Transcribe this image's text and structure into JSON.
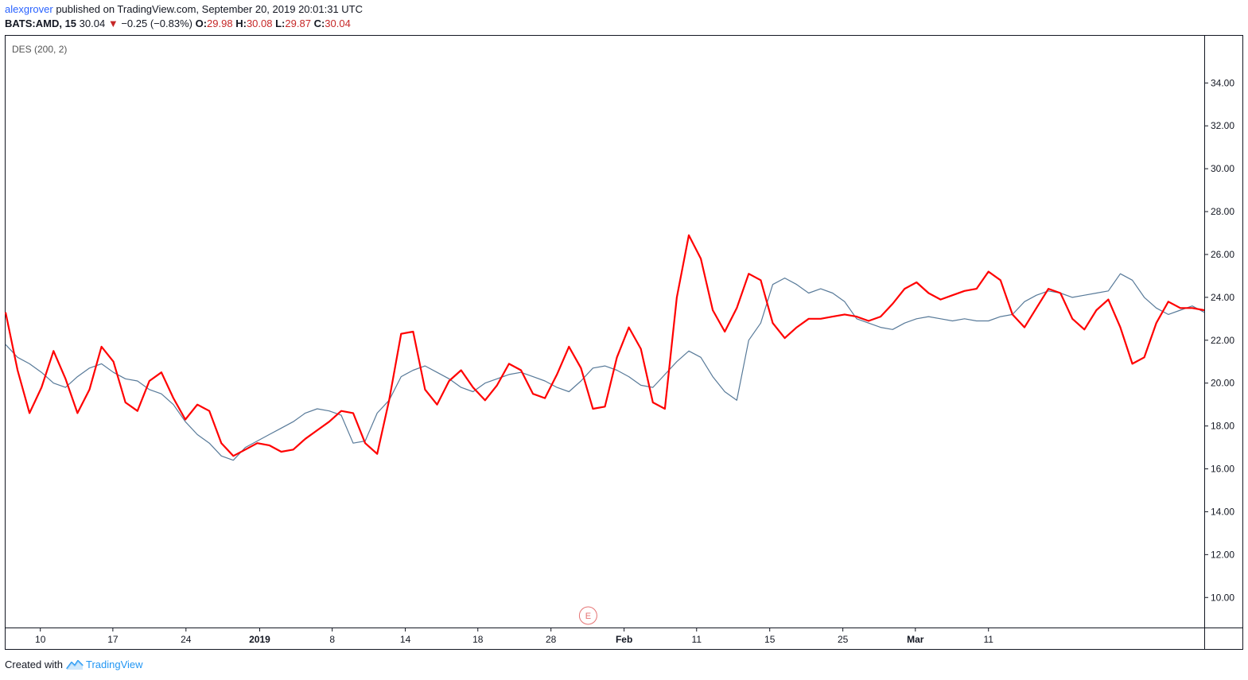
{
  "header": {
    "user": "alexgrover",
    "publish_text": "published on TradingView.com, September 20, 2019 20:01:31 UTC",
    "symbol": "BATS:AMD, 15",
    "last": "30.04",
    "change": "−0.25 (−0.83%)",
    "o_label": "O:",
    "o_value": "29.98",
    "h_label": "H:",
    "h_value": "30.08",
    "l_label": "L:",
    "l_value": "29.87",
    "c_label": "C:",
    "c_value": "30.04"
  },
  "footer": {
    "created_with": "Created with",
    "brand": "TradingView"
  },
  "colors": {
    "price": "#587a99",
    "indicator": "#ff0000",
    "axis": "#131722",
    "earnings": "#e57373"
  },
  "chart_data": {
    "type": "line",
    "indicator_label": "DES (200, 2)",
    "earnings_marker": "E",
    "ylim": [
      8.6,
      36.2
    ],
    "y_ticks": [
      "10.00",
      "12.00",
      "14.00",
      "16.00",
      "18.00",
      "20.00",
      "22.00",
      "24.00",
      "26.00",
      "28.00",
      "30.00",
      "32.00",
      "34.00"
    ],
    "x_ticks": [
      {
        "label": "10",
        "x": 5.8,
        "bold": false
      },
      {
        "label": "17",
        "x": 17.9,
        "bold": false
      },
      {
        "label": "24",
        "x": 30.1,
        "bold": false
      },
      {
        "label": "2019",
        "x": 42.4,
        "bold": true
      },
      {
        "label": "8",
        "x": 54.5,
        "bold": false
      },
      {
        "label": "14",
        "x": 66.7,
        "bold": false
      },
      {
        "label": "18",
        "x": 78.8,
        "bold": false
      },
      {
        "label": "28",
        "x": 91.0,
        "bold": false
      },
      {
        "label": "Feb",
        "x": 103.2,
        "bold": true
      },
      {
        "label": "11",
        "x": 115.3,
        "bold": false
      },
      {
        "label": "15",
        "x": 127.5,
        "bold": false
      },
      {
        "label": "25",
        "x": 139.7,
        "bold": false
      },
      {
        "label": "Mar",
        "x": 151.8,
        "bold": true
      },
      {
        "label": "11",
        "x": 164.0,
        "bold": false
      }
    ],
    "earnings_x": 97.2,
    "xlim": [
      0,
      200
    ],
    "series": [
      {
        "name": "BATS:AMD, 15",
        "color": "#587a99",
        "x": [
          0,
          2,
          4,
          6,
          8,
          10,
          12,
          14,
          16,
          18,
          20,
          22,
          24,
          26,
          28,
          30,
          32,
          34,
          36,
          38,
          40,
          42,
          44,
          46,
          48,
          50,
          52,
          54,
          56,
          58,
          60,
          62,
          64,
          66,
          68,
          70,
          72,
          74,
          76,
          78,
          80,
          82,
          84,
          86,
          88,
          90,
          92,
          94,
          96,
          98,
          100,
          102,
          104,
          106,
          108,
          110,
          112,
          114,
          116,
          118,
          120,
          122,
          124,
          126,
          128,
          130,
          132,
          134,
          136,
          138,
          140,
          142,
          144,
          146,
          148,
          150,
          152,
          154,
          156,
          158,
          160,
          162,
          164,
          166,
          168,
          170,
          172,
          174,
          176,
          178,
          180,
          182,
          184,
          186,
          188,
          190,
          192,
          194,
          196,
          198,
          200
        ],
        "y": [
          21.8,
          21.2,
          20.9,
          20.5,
          20.0,
          19.8,
          20.3,
          20.7,
          20.9,
          20.5,
          20.2,
          20.1,
          19.7,
          19.5,
          19.0,
          18.2,
          17.6,
          17.2,
          16.6,
          16.4,
          17.0,
          17.3,
          17.6,
          17.9,
          18.2,
          18.6,
          18.8,
          18.7,
          18.5,
          17.2,
          17.3,
          18.6,
          19.2,
          20.3,
          20.6,
          20.8,
          20.5,
          20.2,
          19.8,
          19.6,
          20.0,
          20.2,
          20.4,
          20.5,
          20.3,
          20.1,
          19.8,
          19.6,
          20.1,
          20.7,
          20.8,
          20.6,
          20.3,
          19.9,
          19.8,
          20.4,
          21.0,
          21.5,
          21.2,
          20.3,
          19.6,
          19.2,
          22.0,
          22.8,
          24.6,
          24.9,
          24.6,
          24.2,
          24.4,
          24.2,
          23.8,
          23.0,
          22.8,
          22.6,
          22.5,
          22.8,
          23.0,
          23.1,
          23.0,
          22.9,
          23.0,
          22.9,
          22.9,
          23.1,
          23.2,
          23.8,
          24.1,
          24.3,
          24.2,
          24.0,
          24.1,
          24.2,
          24.3,
          25.1,
          24.8,
          24.0,
          23.5,
          23.2,
          23.4,
          23.6,
          23.3
        ]
      },
      {
        "name": "DES (200, 2)",
        "color": "#ff0000",
        "x": [
          0,
          2,
          4,
          6,
          8,
          10,
          12,
          14,
          16,
          18,
          20,
          22,
          24,
          26,
          28,
          30,
          32,
          34,
          36,
          38,
          40,
          42,
          44,
          46,
          48,
          50,
          52,
          54,
          56,
          58,
          60,
          62,
          64,
          66,
          68,
          70,
          72,
          74,
          76,
          78,
          80,
          82,
          84,
          86,
          88,
          90,
          92,
          94,
          96,
          98,
          100,
          102,
          104,
          106,
          108,
          110,
          112,
          114,
          116,
          118,
          120,
          122,
          124,
          126,
          128,
          130,
          132,
          134,
          136,
          138,
          140,
          142,
          144,
          146,
          148,
          150,
          152,
          154,
          156,
          158,
          160,
          162,
          164,
          166,
          168,
          170,
          172,
          174,
          176,
          178,
          180,
          182,
          184,
          186,
          188,
          190,
          192,
          194,
          196,
          198,
          200
        ],
        "y": [
          23.3,
          20.6,
          18.6,
          19.8,
          21.5,
          20.2,
          18.6,
          19.7,
          21.7,
          21.0,
          19.1,
          18.7,
          20.1,
          20.5,
          19.3,
          18.3,
          19.0,
          18.7,
          17.2,
          16.6,
          16.9,
          17.2,
          17.1,
          16.8,
          16.9,
          17.4,
          17.8,
          18.2,
          18.7,
          18.6,
          17.2,
          16.7,
          19.2,
          22.3,
          22.4,
          19.7,
          19.0,
          20.1,
          20.6,
          19.8,
          19.2,
          19.9,
          20.9,
          20.6,
          19.5,
          19.3,
          20.4,
          21.7,
          20.7,
          18.8,
          18.9,
          21.2,
          22.6,
          21.6,
          19.1,
          18.8,
          24.0,
          26.9,
          25.8,
          23.4,
          22.4,
          23.5,
          25.1,
          24.8,
          22.8,
          22.1,
          22.6,
          23.0,
          23.0,
          23.1,
          23.2,
          23.1,
          22.9,
          23.1,
          23.7,
          24.4,
          24.7,
          24.2,
          23.9,
          24.1,
          24.3,
          24.4,
          25.2,
          24.8,
          23.2,
          22.6,
          23.5,
          24.4,
          24.2,
          23.0,
          22.5,
          23.4,
          23.9,
          22.6,
          20.9,
          21.2,
          22.8,
          23.8,
          23.5,
          23.5,
          23.4
        ]
      }
    ]
  }
}
